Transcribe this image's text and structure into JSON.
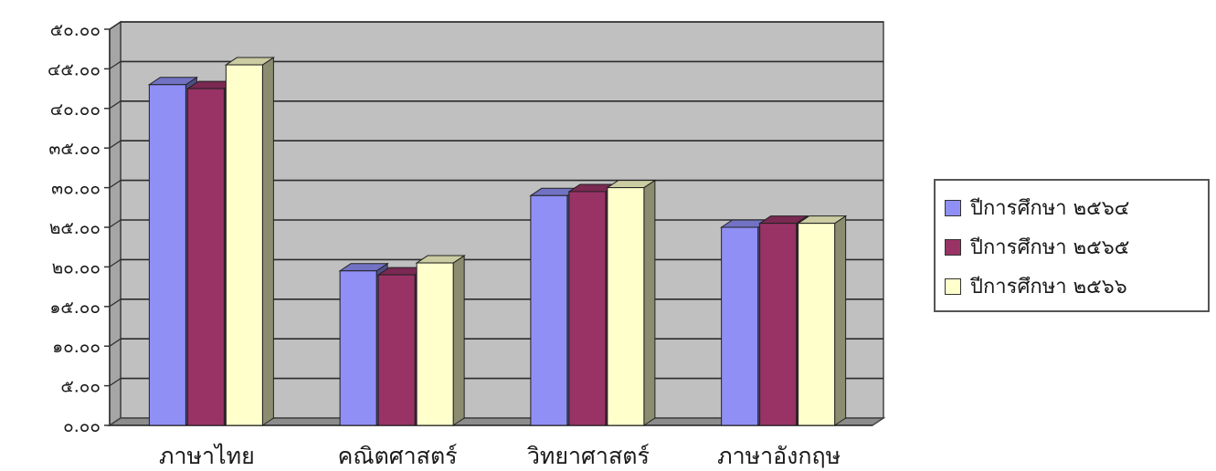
{
  "chart_data": {
    "type": "bar",
    "categories": [
      "ภาษาไทย",
      "คณิตศาสตร์",
      "วิทยาศาสตร์",
      "ภาษาอังกฤษ"
    ],
    "series": [
      {
        "name": "ปีการศึกษา ๒๕๖๔",
        "color": "#8F8FF5",
        "values": [
          43.0,
          19.5,
          29.0,
          25.0
        ]
      },
      {
        "name": "ปีการศึกษา ๒๕๖๕",
        "color": "#993366",
        "values": [
          42.5,
          19.0,
          29.5,
          25.5
        ]
      },
      {
        "name": "ปีการศึกษา ๒๕๖๖",
        "color": "#FFFFCC",
        "values": [
          45.5,
          20.5,
          30.0,
          25.5
        ]
      }
    ],
    "y_tick_labels": [
      "๐.๐๐",
      "๕.๐๐",
      "๑๐.๐๐",
      "๑๕.๐๐",
      "๒๐.๐๐",
      "๒๕.๐๐",
      "๓๐.๐๐",
      "๓๕.๐๐",
      "๔๐.๐๐",
      "๔๕.๐๐",
      "๕๐.๐๐"
    ],
    "ylim": [
      0,
      50
    ],
    "y_step": 5,
    "grid": true,
    "plot_background": "#C0C0C0",
    "legend_position": "right"
  }
}
